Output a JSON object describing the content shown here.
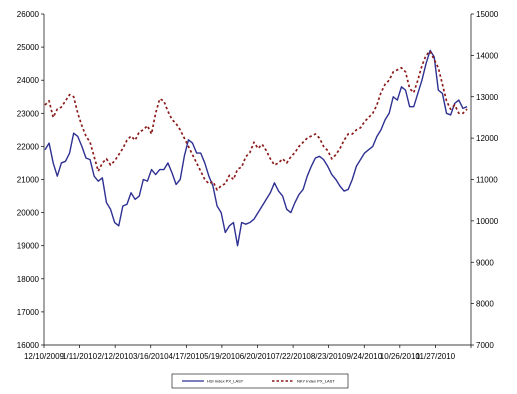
{
  "chart_data": {
    "type": "line",
    "title": "",
    "xlabel": "",
    "ylabel_left": "",
    "ylabel_right": "",
    "x_tick_labels": [
      "12/10/2009",
      "1/11/2010",
      "2/12/2010",
      "3/16/2010",
      "4/17/2010",
      "5/19/2010",
      "6/20/2010",
      "7/22/2010",
      "8/23/2010",
      "9/24/2010",
      "10/26/2010",
      "11/27/2010"
    ],
    "y_left": {
      "min": 16000,
      "max": 26000,
      "ticks": [
        "16000",
        "17000",
        "18000",
        "19000",
        "20000",
        "21000",
        "22000",
        "23000",
        "24000",
        "25000",
        "26000"
      ]
    },
    "y_right": {
      "min": 7000,
      "max": 15000,
      "ticks": [
        "7000",
        "8000",
        "9000",
        "10000",
        "11000",
        "12000",
        "13000",
        "14000",
        "15000"
      ]
    },
    "grid": false,
    "legend_position": "bottom",
    "series": [
      {
        "name": "HSI Index PX_LAST",
        "axis": "left",
        "color": "#2e3192",
        "style": "solid",
        "values": [
          21900,
          22100,
          21500,
          21100,
          21500,
          21550,
          21800,
          22400,
          22300,
          22000,
          21650,
          21600,
          21100,
          20950,
          21050,
          20300,
          20100,
          19700,
          19600,
          20200,
          20250,
          20600,
          20400,
          20500,
          21000,
          20950,
          21300,
          21150,
          21300,
          21300,
          21500,
          21200,
          20850,
          21000,
          21700,
          22200,
          22100,
          21800,
          21800,
          21500,
          21100,
          20800,
          20200,
          20000,
          19400,
          19600,
          19700,
          19000,
          19700,
          19650,
          19700,
          19800,
          20000,
          20200,
          20400,
          20600,
          20900,
          20650,
          20500,
          20100,
          20000,
          20300,
          20550,
          20700,
          21100,
          21400,
          21650,
          21700,
          21600,
          21400,
          21150,
          21000,
          20800,
          20650,
          20700,
          21000,
          21400,
          21600,
          21800,
          21900,
          22000,
          22300,
          22500,
          22800,
          23000,
          23500,
          23400,
          23800,
          23700,
          23200,
          23200,
          23600,
          24000,
          24500,
          24900,
          24700,
          23700,
          23600,
          23000,
          22950,
          23300,
          23400,
          23150,
          23200
        ]
      },
      {
        "name": "NKY Index PX_LAST",
        "axis": "right",
        "color": "#8b1a1a",
        "style": "dashed",
        "values": [
          12800,
          12900,
          12500,
          12700,
          12750,
          12900,
          13050,
          13000,
          12600,
          12300,
          12050,
          11900,
          11550,
          11200,
          11400,
          11500,
          11350,
          11450,
          11600,
          11750,
          11950,
          12050,
          11950,
          12150,
          12200,
          12300,
          12100,
          12600,
          12950,
          12900,
          12650,
          12450,
          12350,
          12200,
          12000,
          11800,
          11600,
          11400,
          11200,
          11000,
          10900,
          10950,
          10750,
          10850,
          10900,
          11100,
          11000,
          11250,
          11300,
          11550,
          11650,
          11900,
          11750,
          11850,
          11700,
          11500,
          11350,
          11400,
          11500,
          11400,
          11550,
          11650,
          11800,
          11900,
          12000,
          12050,
          12100,
          12000,
          11800,
          11700,
          11500,
          11600,
          11750,
          11950,
          12100,
          12100,
          12200,
          12250,
          12400,
          12500,
          12600,
          12800,
          13100,
          13300,
          13400,
          13600,
          13650,
          13700,
          13600,
          13200,
          13100,
          13400,
          13750,
          14000,
          14100,
          13900,
          13700,
          13300,
          12900,
          12700,
          12800,
          12600,
          12600,
          12700
        ]
      }
    ]
  }
}
